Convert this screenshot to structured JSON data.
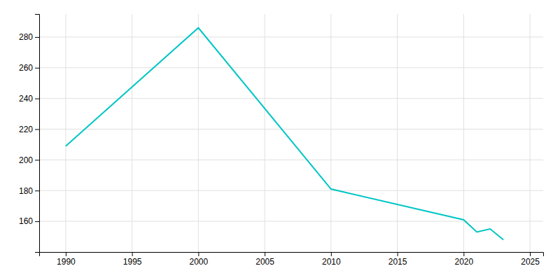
{
  "chart_data": {
    "type": "line",
    "x": [
      1990,
      2000,
      2010,
      2020,
      2021,
      2022,
      2023
    ],
    "values": [
      209,
      286,
      181,
      161,
      153,
      155,
      148
    ],
    "color": "#00c5c5",
    "xlim": [
      1988,
      2026
    ],
    "ylim": [
      140,
      295
    ],
    "xticks": [
      1990,
      1995,
      2000,
      2005,
      2010,
      2015,
      2020,
      2025
    ],
    "yticks": [
      160,
      180,
      200,
      220,
      240,
      260,
      280
    ],
    "grid": true
  }
}
